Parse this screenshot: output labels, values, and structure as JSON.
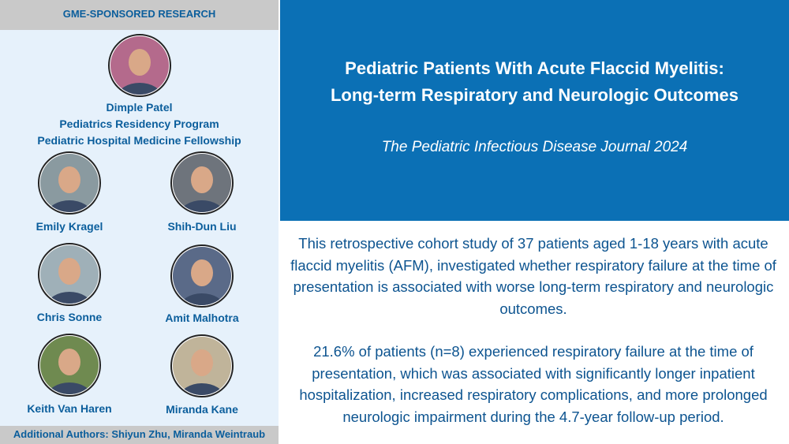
{
  "header": {
    "title": "GME-SPONSORED RESEARCH"
  },
  "lead_author": {
    "name": "Dimple Patel",
    "affiliations": [
      "Pediatrics Residency Program",
      "Pediatric Hospital Medicine Fellowship"
    ]
  },
  "authors": [
    "Emily Kragel",
    "Shih-Dun Liu",
    "Chris Sonne",
    "Amit Malhotra",
    "Keith Van Haren",
    "Miranda Kane"
  ],
  "footer": {
    "text": "Additional Authors:  Shiyun Zhu, Miranda Weintraub"
  },
  "article": {
    "title_lines": [
      "Pediatric Patients With Acute Flaccid Myelitis:",
      "Long-term Respiratory and Neurologic Outcomes"
    ],
    "journal": "The Pediatric Infectious Disease Journal 2024",
    "paragraphs": [
      "This retrospective cohort study of 37 patients aged 1-18 years with acute flaccid myelitis (AFM), investigated whether respiratory failure at the time of presentation is associated with worse long-term respiratory and neurologic outcomes.",
      "21.6% of patients (n=8) experienced respiratory failure at the time of presentation, which was associated with significantly longer inpatient hospitalization, increased respiratory complications, and more prolonged neurologic impairment during the 4.7-year follow-up period."
    ]
  }
}
